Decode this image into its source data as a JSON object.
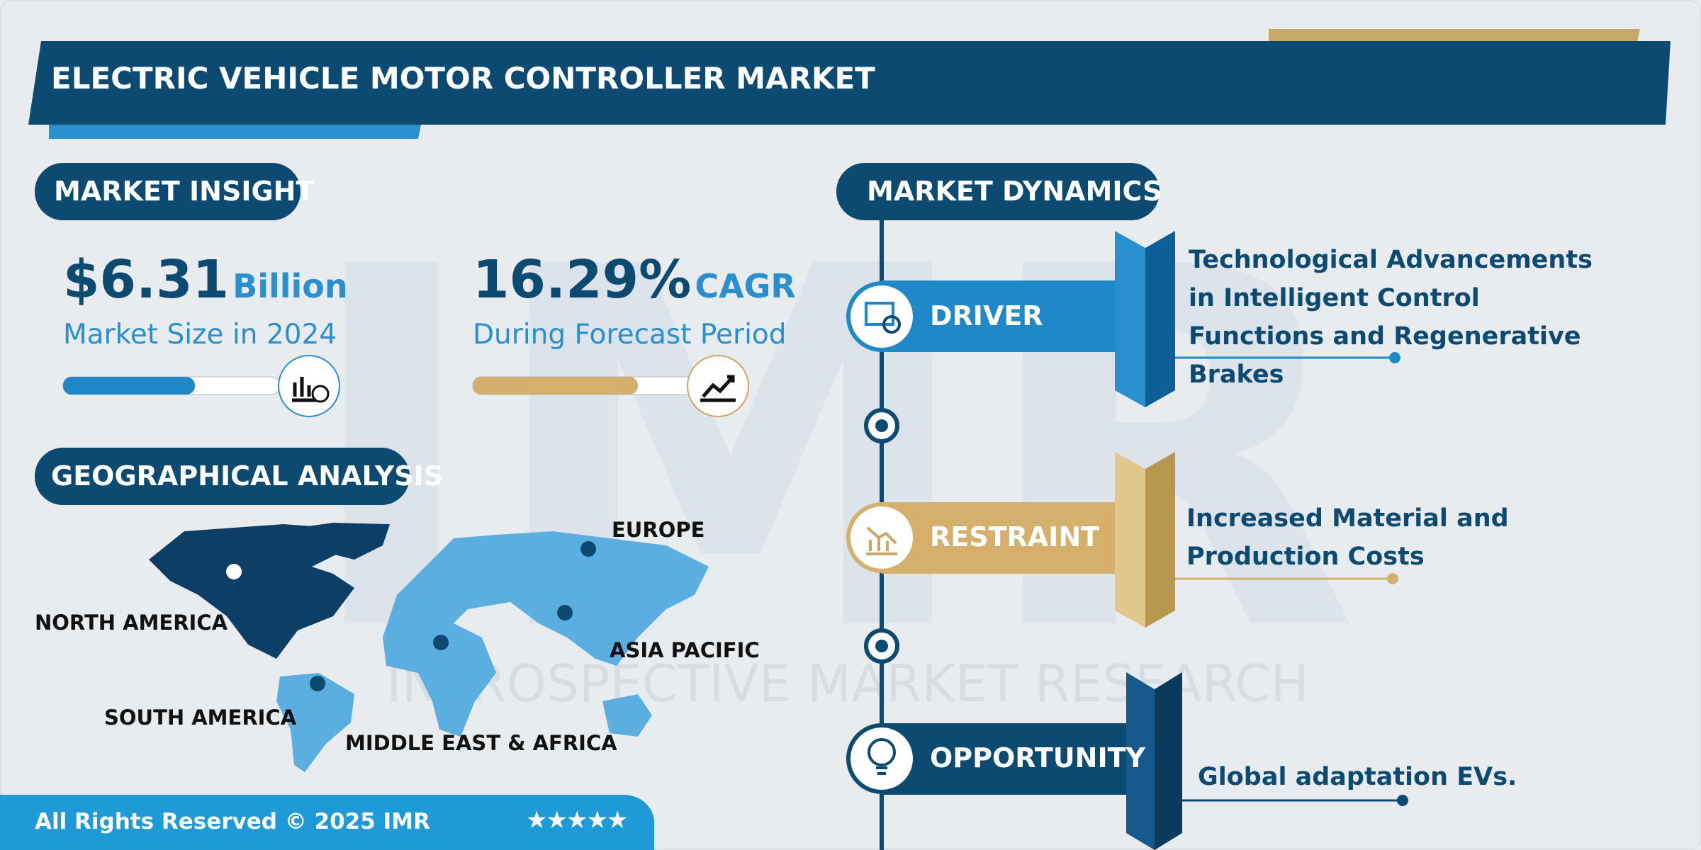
{
  "header": {
    "title": "ELECTRIC VEHICLE MOTOR CONTROLLER MARKET"
  },
  "market_insight": {
    "heading": "MARKET INSIGHT",
    "market_size": {
      "value": "$6.31",
      "unit": "Billion",
      "label": "Market Size in 2024"
    },
    "cagr": {
      "value": "16.29%",
      "unit": "CAGR",
      "label": "During Forecast Period"
    }
  },
  "geographical_analysis": {
    "heading": "GEOGRAPHICAL ANALYSIS",
    "regions": [
      "NORTH AMERICA",
      "EUROPE",
      "ASIA PACIFIC",
      "SOUTH AMERICA",
      "MIDDLE EAST & AFRICA"
    ]
  },
  "market_dynamics": {
    "heading": "MARKET DYNAMICS",
    "items": [
      {
        "label": "DRIVER",
        "text": "Technological Advancements in Intelligent Control Functions and Regenerative Brakes"
      },
      {
        "label": "RESTRAINT",
        "text": "Increased Material and Production Costs"
      },
      {
        "label": "OPPORTUNITY",
        "text": "Global adaptation EVs."
      }
    ]
  },
  "watermark_logo": "IMR",
  "watermark": "INTROSPECTIVE MARKET RESEARCH",
  "footer": {
    "rights": "All Rights Reserved © 2025 IMR",
    "rating": "★★★★★"
  }
}
